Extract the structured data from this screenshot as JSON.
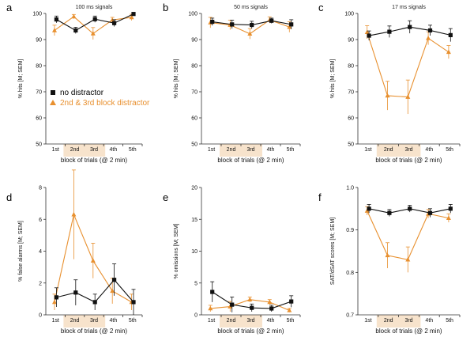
{
  "colors": {
    "orange": "#e8902f",
    "black": "#111111",
    "shade": "#f7e3cc"
  },
  "legend": {
    "no_distractor": "no distractor",
    "distractor": "2nd & 3rd block distractor"
  },
  "chart_data": [
    {
      "type": "line",
      "letter": "a",
      "title": "100 ms signals",
      "xlabel": "block of trials (@ 2 min)",
      "ylabel": "% hits [M; SEM]",
      "categories": [
        "1st",
        "2nd",
        "3rd",
        "4th",
        "5th"
      ],
      "ylim": [
        50,
        100
      ],
      "yticks": [
        50,
        60,
        70,
        80,
        90,
        100
      ],
      "yticklabels": [
        "50",
        "60",
        "70",
        "80",
        "90",
        "100"
      ],
      "shaded": [
        "2nd",
        "3rd"
      ],
      "series": [
        {
          "name": "no distractor",
          "values": [
            97.7,
            93.5,
            97.8,
            96.3,
            99.8
          ],
          "err": [
            1.3,
            1.2,
            1.2,
            1.3,
            0.4
          ]
        },
        {
          "name": "2nd & 3rd block distractor",
          "values": [
            93.5,
            98.8,
            92.3,
            97.5,
            98.5
          ],
          "err": [
            2.0,
            0.8,
            2.3,
            1.0,
            1.2
          ]
        }
      ]
    },
    {
      "type": "line",
      "letter": "b",
      "title": "50 ms signals",
      "xlabel": "block of trials (@ 2 min)",
      "ylabel": "% hits [M; SEM]",
      "categories": [
        "1st",
        "2nd",
        "3rd",
        "4th",
        "5th"
      ],
      "ylim": [
        50,
        100
      ],
      "yticks": [
        50,
        60,
        70,
        80,
        90,
        100
      ],
      "yticklabels": [
        "50",
        "60",
        "70",
        "80",
        "90",
        "100"
      ],
      "shaded": [
        "2nd",
        "3rd"
      ],
      "series": [
        {
          "name": "no distractor",
          "values": [
            96.8,
            95.8,
            95.6,
            97.2,
            95.8
          ],
          "err": [
            1.4,
            1.6,
            1.4,
            1.0,
            1.8
          ]
        },
        {
          "name": "2nd & 3rd block distractor",
          "values": [
            96.5,
            95.6,
            92.2,
            97.5,
            94.8
          ],
          "err": [
            2.0,
            1.8,
            2.0,
            1.2,
            2.0
          ]
        }
      ]
    },
    {
      "type": "line",
      "letter": "c",
      "title": "17 ms signals",
      "xlabel": "block of trials (@ 2 min)",
      "ylabel": "% hits [M; SEM]",
      "categories": [
        "1st",
        "2nd",
        "3rd",
        "4th",
        "5th"
      ],
      "ylim": [
        50,
        100
      ],
      "yticks": [
        50,
        60,
        70,
        80,
        90,
        100
      ],
      "yticklabels": [
        "50",
        "60",
        "70",
        "80",
        "90",
        "100"
      ],
      "shaded": [
        "2nd",
        "3rd"
      ],
      "series": [
        {
          "name": "no distractor",
          "values": [
            91.5,
            93.0,
            94.8,
            93.5,
            91.7
          ],
          "err": [
            1.8,
            2.2,
            2.4,
            2.0,
            2.5
          ]
        },
        {
          "name": "2nd & 3rd block distractor",
          "values": [
            92.8,
            68.5,
            68.0,
            90.5,
            85.2
          ],
          "err": [
            2.5,
            5.5,
            6.5,
            2.5,
            2.5
          ]
        }
      ]
    },
    {
      "type": "line",
      "letter": "d",
      "title": "",
      "xlabel": "block of trials (@ 2 min)",
      "ylabel": "% false alarms [M; SEM]",
      "categories": [
        "1st",
        "2nd",
        "3rd",
        "4th",
        "5th"
      ],
      "ylim": [
        0,
        8
      ],
      "yticks": [
        0,
        2,
        4,
        6,
        8
      ],
      "yticklabels": [
        "0",
        "2",
        "4",
        "6",
        "8"
      ],
      "shaded": [
        "2nd",
        "3rd"
      ],
      "series": [
        {
          "name": "no distractor",
          "values": [
            1.1,
            1.4,
            0.8,
            2.2,
            0.8
          ],
          "err": [
            0.6,
            0.8,
            0.5,
            1.0,
            0.8
          ]
        },
        {
          "name": "2nd & 3rd block distractor",
          "values": [
            0.8,
            6.3,
            3.4,
            1.5,
            0.8
          ],
          "err": [
            0.5,
            2.8,
            1.1,
            0.8,
            0.5
          ]
        }
      ]
    },
    {
      "type": "line",
      "letter": "e",
      "title": "",
      "xlabel": "block of trials (@ 2 min)",
      "ylabel": "% omissions [M; SEM]",
      "categories": [
        "1st",
        "2nd",
        "3rd",
        "4th",
        "5th"
      ],
      "ylim": [
        0,
        20
      ],
      "yticks": [
        0,
        5,
        10,
        15,
        20
      ],
      "yticklabels": [
        "0",
        "5",
        "10",
        "15",
        "20"
      ],
      "shaded": [
        "2nd",
        "3rd"
      ],
      "series": [
        {
          "name": "no distractor",
          "values": [
            3.6,
            1.6,
            1.1,
            1.0,
            2.1
          ],
          "err": [
            1.6,
            1.2,
            0.6,
            0.5,
            0.9
          ]
        },
        {
          "name": "2nd & 3rd block distractor",
          "values": [
            1.0,
            1.3,
            2.4,
            2.0,
            0.7
          ],
          "err": [
            0.5,
            0.8,
            0.4,
            0.4,
            0.3
          ]
        }
      ]
    },
    {
      "type": "line",
      "letter": "f",
      "title": "",
      "xlabel": "block of trials (@ 2 min)",
      "ylabel": "SAT/dSAT scores [M; SEM]",
      "categories": [
        "1st",
        "2nd",
        "3rd",
        "4th",
        "5th"
      ],
      "ylim": [
        0.7,
        1.0
      ],
      "yticks": [
        0.7,
        0.8,
        0.9,
        1.0
      ],
      "yticklabels": [
        "0.7",
        "0.8",
        "0.9",
        "1.0"
      ],
      "shaded": [
        "2nd",
        "3rd"
      ],
      "series": [
        {
          "name": "no distractor",
          "values": [
            0.95,
            0.94,
            0.95,
            0.94,
            0.95
          ],
          "err": [
            0.01,
            0.008,
            0.008,
            0.01,
            0.01
          ]
        },
        {
          "name": "2nd & 3rd block distractor",
          "values": [
            0.945,
            0.84,
            0.83,
            0.938,
            0.928
          ],
          "err": [
            0.01,
            0.03,
            0.03,
            0.01,
            0.01
          ]
        }
      ]
    }
  ]
}
